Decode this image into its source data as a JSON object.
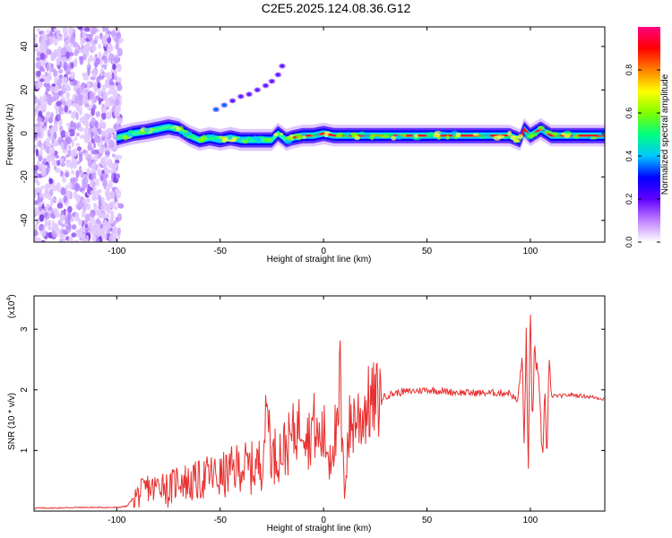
{
  "title": "C2E5.2025.124.08.36.G12",
  "chart_data": [
    {
      "type": "heatmap",
      "xlabel": "Height of straight line (km)",
      "ylabel": "Frequency (Hz)",
      "xlim": [
        -140,
        136
      ],
      "ylim": [
        -50,
        49
      ],
      "xticks": [
        -100,
        -50,
        0,
        50,
        100
      ],
      "xtick_labels": [
        "-100",
        "-50",
        "0",
        "50",
        "100"
      ],
      "yticks": [
        -40,
        -20,
        0,
        20,
        40
      ],
      "ytick_labels": [
        "-40",
        "-20",
        "0",
        "20",
        "40"
      ],
      "colorbar": {
        "label": "Normalized spectral amplitude",
        "range": [
          0,
          1
        ],
        "ticks": [
          0.0,
          0.2,
          0.4,
          0.6,
          0.8
        ],
        "tick_labels": [
          "0.0",
          "0.2",
          "0.4",
          "0.6",
          "0.8"
        ],
        "colormap": [
          "#ffffff",
          "#c080ff",
          "#6000ff",
          "#0000ff",
          "#00c8ff",
          "#00ff80",
          "#80ff00",
          "#ffff00",
          "#ff8000",
          "#ff0000",
          "#ff0080"
        ]
      },
      "ridge": {
        "x": [
          -100,
          -92,
          -85,
          -80,
          -75,
          -70,
          -65,
          -60,
          -55,
          -50,
          -45,
          -40,
          -35,
          -30,
          -25,
          -22,
          -18,
          -15,
          -10,
          -5,
          0,
          5,
          10,
          20,
          30,
          40,
          50,
          60,
          70,
          80,
          90,
          95,
          97,
          100,
          105,
          110,
          120,
          136
        ],
        "y": [
          -2,
          0,
          1,
          2,
          3,
          2,
          -1,
          -3,
          -2,
          -3,
          -2,
          -3,
          -3,
          -3,
          -3,
          0,
          -3,
          -2,
          -1,
          -1,
          0,
          -1,
          -1,
          -1,
          -1,
          -1,
          -1,
          -1,
          -1,
          -1,
          -1,
          -3,
          2,
          -1,
          2,
          -1,
          -1,
          -1
        ]
      },
      "whistler": {
        "x": [
          -52,
          -48,
          -44,
          -40,
          -36,
          -32,
          -28,
          -25,
          -22,
          -20
        ],
        "y": [
          11,
          13,
          15,
          17,
          18,
          20,
          22,
          24,
          27,
          31
        ]
      }
    },
    {
      "type": "line",
      "xlabel": "Height of straight line (km)",
      "ylabel": "SNR (10 * v/v)",
      "y_multiplier": "(x10",
      "y_multiplier_exp": "4",
      "xlim": [
        -140,
        136
      ],
      "ylim": [
        0,
        3.55
      ],
      "xticks": [
        -100,
        -50,
        0,
        50,
        100
      ],
      "xtick_labels": [
        "-100",
        "-50",
        "0",
        "50",
        "100"
      ],
      "yticks": [
        1,
        2,
        3
      ],
      "ytick_labels": [
        "1",
        "2",
        "3"
      ],
      "color": "#e83030",
      "series": [
        {
          "x": [
            -140,
            -130,
            -120,
            -110,
            -100,
            -95,
            -92,
            -88,
            -85,
            -82,
            -78,
            -75,
            -70,
            -65,
            -60,
            -55,
            -50,
            -45,
            -40,
            -35,
            -30,
            -27,
            -25,
            -23,
            -20,
            -17,
            -15,
            -12,
            -10,
            -7,
            -5,
            -3,
            0,
            3,
            5,
            7,
            8,
            9,
            10,
            12,
            15,
            18,
            20,
            22,
            25,
            30,
            35,
            40,
            50,
            60,
            70,
            80,
            90,
            94,
            96,
            97,
            98,
            99,
            100,
            101,
            102,
            104,
            106,
            107,
            108,
            109,
            110,
            115,
            120,
            125,
            130,
            136
          ],
          "y": [
            0.05,
            0.05,
            0.06,
            0.06,
            0.06,
            0.08,
            0.22,
            0.3,
            0.4,
            0.35,
            0.5,
            0.32,
            0.55,
            0.45,
            0.5,
            0.6,
            0.55,
            0.65,
            0.75,
            0.7,
            0.8,
            1.8,
            0.85,
            0.95,
            1.0,
            1.1,
            1.25,
            1.4,
            1.55,
            1.2,
            1.5,
            1.15,
            1.25,
            0.95,
            1.3,
            1.1,
            2.6,
            0.7,
            0.55,
            1.3,
            1.55,
            1.55,
            1.7,
            1.75,
            1.82,
            1.9,
            1.95,
            1.97,
            2.0,
            1.97,
            1.95,
            1.95,
            1.95,
            1.8,
            2.6,
            1.0,
            3.0,
            0.4,
            3.55,
            1.3,
            2.7,
            2.1,
            0.8,
            2.2,
            0.7,
            2.5,
            1.9,
            1.9,
            1.92,
            1.9,
            1.88,
            1.85
          ]
        }
      ]
    }
  ]
}
